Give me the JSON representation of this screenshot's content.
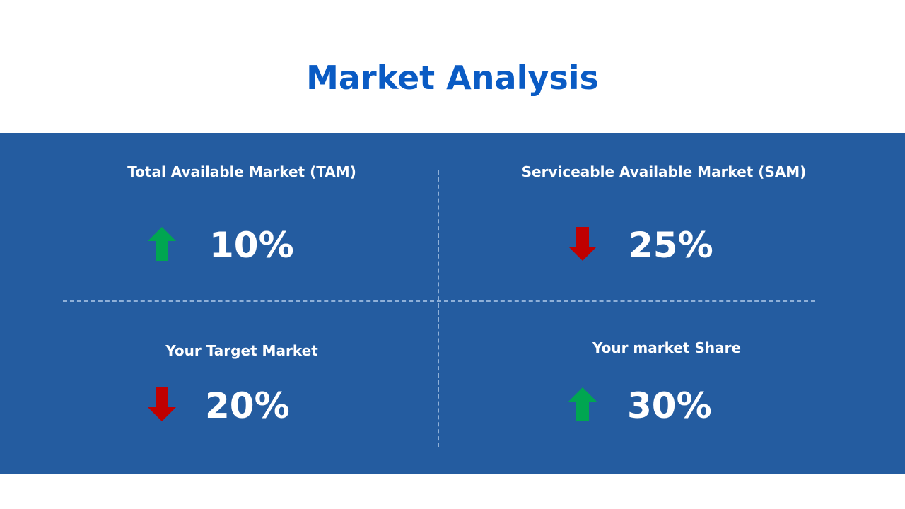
{
  "slide": {
    "title": "Market Analysis"
  },
  "quadrants": [
    {
      "label": "Total Available Market (TAM)",
      "value": "10%",
      "trend": "up",
      "trend_icon": "arrow-up-icon",
      "trend_color": "#00a651"
    },
    {
      "label": "Serviceable  Available Market (SAM)",
      "value": "25%",
      "trend": "down",
      "trend_icon": "arrow-down-icon",
      "trend_color": "#c00000"
    },
    {
      "label": "Your Target Market",
      "value": "20%",
      "trend": "down",
      "trend_icon": "arrow-down-icon",
      "trend_color": "#c00000"
    },
    {
      "label": "Your market Share",
      "value": "30%",
      "trend": "up",
      "trend_icon": "arrow-up-icon",
      "trend_color": "#00a651"
    }
  ],
  "colors": {
    "title": "#0a5bc4",
    "panel_background": "#245ca0",
    "divider": "#8fb0d8",
    "text": "#ffffff"
  }
}
